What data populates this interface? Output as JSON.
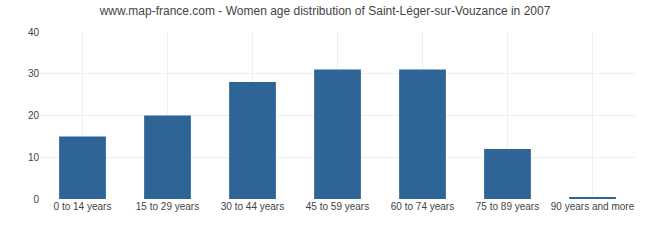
{
  "chart_data": {
    "type": "bar",
    "title": "www.map-france.com - Women age distribution of Saint-Léger-sur-Vouzance in 2007",
    "categories": [
      "0 to 14 years",
      "15 to 29 years",
      "30 to 44 years",
      "45 to 59 years",
      "60 to 74 years",
      "75 to 89 years",
      "90 years and more"
    ],
    "values": [
      15,
      20,
      28,
      31,
      31,
      12,
      0.4
    ],
    "color": "#2e6496",
    "ylim": [
      0,
      40
    ],
    "yticks": [
      0,
      10,
      20,
      30,
      40
    ],
    "grid": true
  }
}
